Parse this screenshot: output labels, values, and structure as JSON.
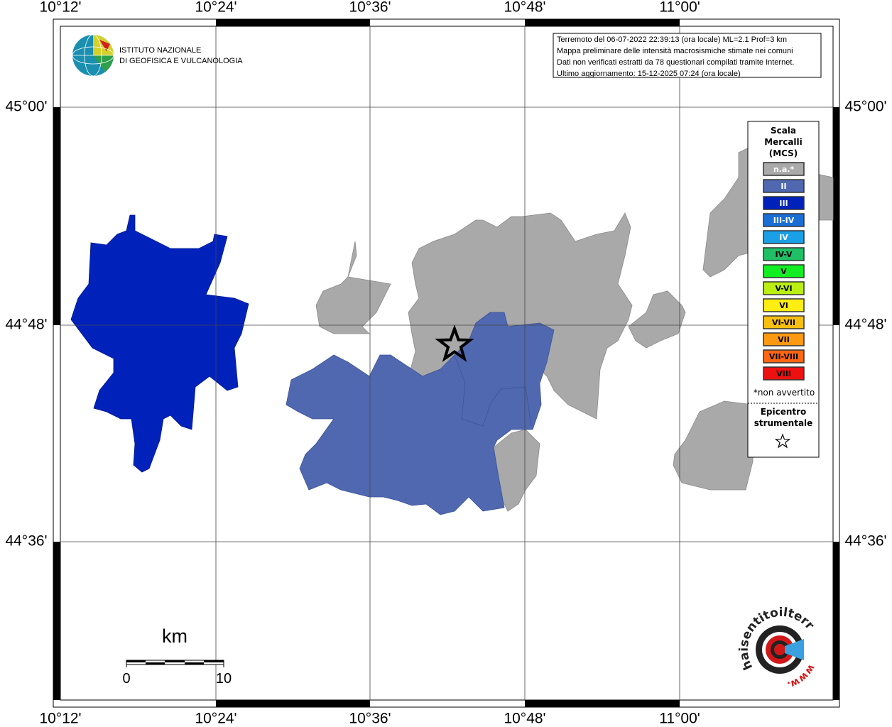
{
  "lon_labels": [
    "10°12'",
    "10°24'",
    "10°36'",
    "10°48'",
    "11°00'"
  ],
  "lat_labels": [
    "45°00'",
    "44°48'",
    "44°36'"
  ],
  "info": [
    "Terremoto del 06-07-2022 22:39:13 (ora locale) ML=2.1 Prof=3 km",
    "Mappa preliminare delle intensità macrosismiche stimate nei comuni",
    "Dati non verificati estratti da 78 questionari compilati tramite Internet.",
    "Ultimo aggiornamento: 15-12-2025 07:24 (ora locale)"
  ],
  "institute": [
    "ISTITUTO NAZIONALE",
    "DI GEOFISICA E VULCANOLOGIA"
  ],
  "legend": {
    "title": [
      "Scala",
      "Mercalli",
      "(MCS)"
    ],
    "items": [
      {
        "label": "n.a.*",
        "color": "#aaaaaa"
      },
      {
        "label": "II",
        "color": "#5068b0"
      },
      {
        "label": "III",
        "color": "#0022bb"
      },
      {
        "label": "III-IV",
        "color": "#1a6fd6"
      },
      {
        "label": "IV",
        "color": "#1aa0e6"
      },
      {
        "label": "IV-V",
        "color": "#1fbf66"
      },
      {
        "label": "V",
        "color": "#11ee22"
      },
      {
        "label": "V-VI",
        "color": "#bbee11"
      },
      {
        "label": "VI",
        "color": "#ffee11"
      },
      {
        "label": "VI-VII",
        "color": "#f7c010"
      },
      {
        "label": "VII",
        "color": "#ff9911"
      },
      {
        "label": "VII-VIII",
        "color": "#ff6611"
      },
      {
        "label": "VIII",
        "color": "#ee1111"
      }
    ],
    "note": "*non avvertito",
    "epicenter": [
      "Epicentro",
      "strumentale"
    ]
  },
  "scale": {
    "unit": "km",
    "labels": [
      "0",
      "10"
    ]
  },
  "site_logo": {
    "text": "haisentitoilterremoto.it",
    "prefix": "www."
  }
}
